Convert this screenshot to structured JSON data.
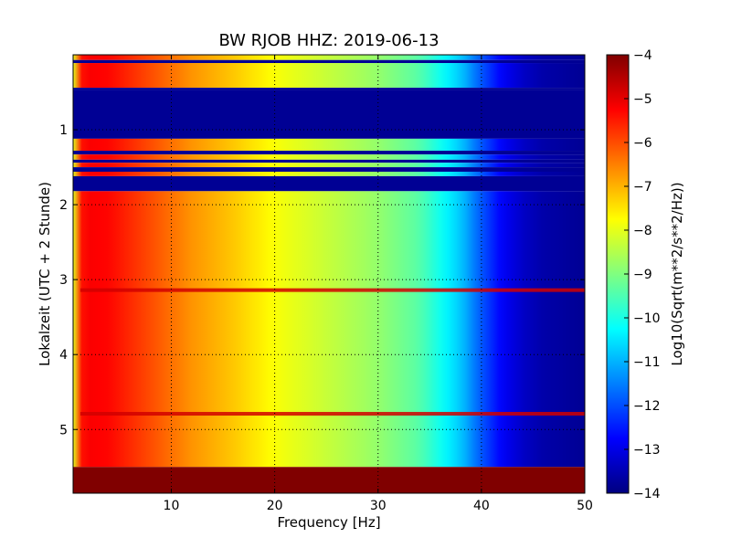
{
  "chart_data": {
    "type": "heatmap",
    "title": "BW RJOB HHZ: 2019-06-13",
    "xlabel": "Frequency [Hz]",
    "ylabel": "Lokalzeit (UTC + 2 Stunde)",
    "xlim": [
      0.5,
      50
    ],
    "ylim": [
      5.85,
      0.0
    ],
    "x_ticks": [
      10,
      20,
      30,
      40,
      50
    ],
    "x_tick_labels": [
      "10",
      "20",
      "30",
      "40",
      "50"
    ],
    "y_ticks": [
      1,
      2,
      3,
      4,
      5
    ],
    "y_tick_labels": [
      "1",
      "2",
      "3",
      "4",
      "5"
    ],
    "grid": true,
    "colormap": "jet",
    "colorbar": {
      "label": "Log10(Sqrt(m**2/s**2/Hz))",
      "range": [
        -14,
        -4
      ],
      "ticks": [
        -4,
        -5,
        -6,
        -7,
        -8,
        -9,
        -10,
        -11,
        -12,
        -13,
        -14
      ],
      "tick_labels": [
        "−4",
        "−5",
        "−6",
        "−7",
        "−8",
        "−9",
        "−10",
        "−11",
        "−12",
        "−13",
        "−14"
      ]
    },
    "spectrum_profile": {
      "frequency_hz": [
        0.5,
        1,
        2,
        4,
        8,
        12,
        16,
        20,
        25,
        30,
        34,
        38,
        40,
        42,
        44,
        46,
        50
      ],
      "level": [
        -8,
        -5.5,
        -5.2,
        -5.3,
        -6.0,
        -6.7,
        -7.2,
        -7.8,
        -8.3,
        -8.8,
        -9.4,
        -10.8,
        -11.9,
        -12.8,
        -13.3,
        -13.6,
        -13.8
      ]
    },
    "time_segments_hours": [
      {
        "start": 0.0,
        "end": 0.07,
        "state": "data"
      },
      {
        "start": 0.07,
        "end": 0.11,
        "state": "gap"
      },
      {
        "start": 0.11,
        "end": 0.44,
        "state": "data"
      },
      {
        "start": 0.44,
        "end": 0.47,
        "state": "gap"
      },
      {
        "start": 0.47,
        "end": 1.12,
        "state": "gap"
      },
      {
        "start": 1.12,
        "end": 1.28,
        "state": "data"
      },
      {
        "start": 1.28,
        "end": 1.33,
        "state": "gap"
      },
      {
        "start": 1.33,
        "end": 1.4,
        "state": "data"
      },
      {
        "start": 1.4,
        "end": 1.44,
        "state": "gap"
      },
      {
        "start": 1.44,
        "end": 1.5,
        "state": "data"
      },
      {
        "start": 1.5,
        "end": 1.56,
        "state": "gap"
      },
      {
        "start": 1.56,
        "end": 1.62,
        "state": "data"
      },
      {
        "start": 1.62,
        "end": 1.82,
        "state": "gap"
      },
      {
        "start": 1.82,
        "end": 5.5,
        "state": "data"
      },
      {
        "start": 5.5,
        "end": 5.85,
        "state": "saturated"
      }
    ],
    "strong_lines_hours": [
      3.14,
      4.79
    ],
    "gap_level": -13.8,
    "saturated_level": -4.0
  },
  "colors": {
    "frame": "#000000",
    "grid": "#000000",
    "background": "#ffffff"
  }
}
